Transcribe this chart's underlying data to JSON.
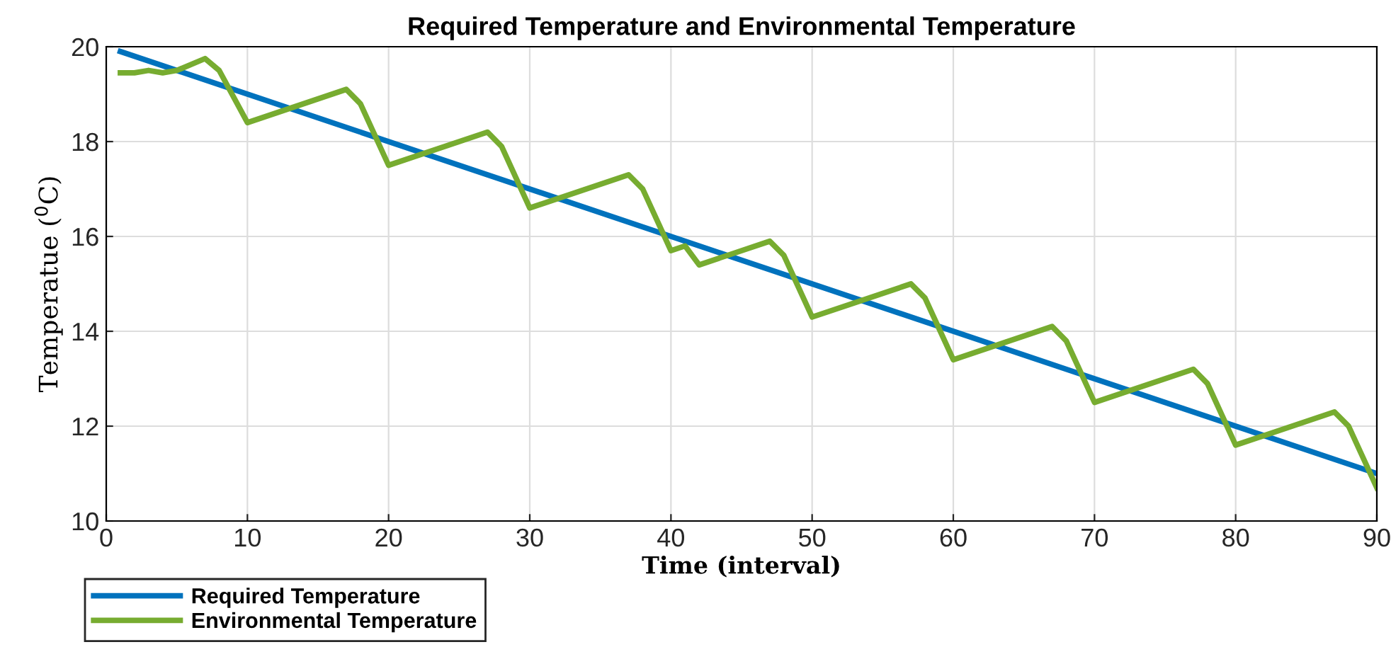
{
  "chart_data": {
    "type": "line",
    "title": "Required Temperature and Environmental Temperature",
    "xlabel": "Time (interval)",
    "ylabel": "Temperatue ($^{0}$C)",
    "xlim": [
      0,
      90
    ],
    "ylim": [
      10,
      20
    ],
    "xticks": [
      0,
      10,
      20,
      30,
      40,
      50,
      60,
      70,
      80,
      90
    ],
    "yticks": [
      10,
      12,
      14,
      16,
      18,
      20
    ],
    "grid": true,
    "legend": "bottom left",
    "series": [
      {
        "name": "Required Temperature",
        "color": "#0072bd",
        "x": [
          1,
          90
        ],
        "values": [
          19.9,
          11.0
        ]
      },
      {
        "name": "Environmental Temperature",
        "color": "#77ac30",
        "x": [
          1,
          2,
          3,
          4,
          5,
          7,
          8,
          10,
          17,
          18,
          20,
          27,
          28,
          30,
          37,
          38,
          40,
          41,
          42,
          47,
          48,
          50,
          57,
          58,
          60,
          67,
          68,
          70,
          77,
          78,
          80,
          87,
          88,
          90
        ],
        "values": [
          19.45,
          19.45,
          19.5,
          19.45,
          19.5,
          19.75,
          19.5,
          18.4,
          19.1,
          18.8,
          17.5,
          18.2,
          17.9,
          16.6,
          17.3,
          17.0,
          15.7,
          15.8,
          15.4,
          15.9,
          15.6,
          14.3,
          15.0,
          14.7,
          13.4,
          14.1,
          13.8,
          12.5,
          13.2,
          12.9,
          11.6,
          12.3,
          12.0,
          10.7
        ]
      }
    ]
  }
}
